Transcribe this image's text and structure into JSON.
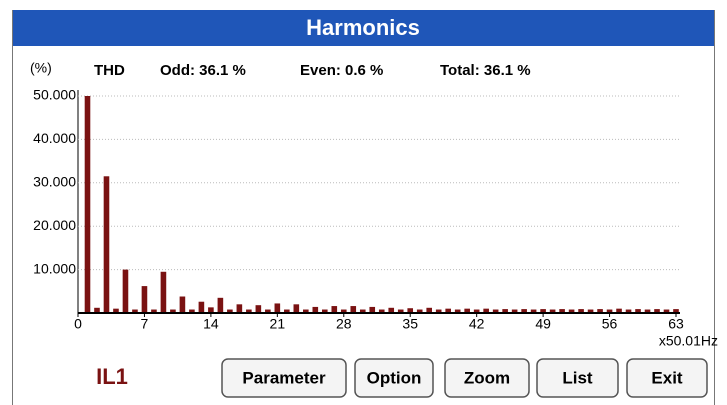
{
  "header": {
    "title": "Harmonics"
  },
  "thd": {
    "unit": "(%)",
    "label": "THD",
    "odd": "Odd: 36.1 %",
    "even": "Even: 0.6 %",
    "total": "Total: 36.1 %"
  },
  "chart_data": {
    "type": "bar",
    "x": [
      1,
      2,
      3,
      4,
      5,
      6,
      7,
      8,
      9,
      10,
      11,
      12,
      13,
      14,
      15,
      16,
      17,
      18,
      19,
      20,
      21,
      22,
      23,
      24,
      25,
      26,
      27,
      28,
      29,
      30,
      31,
      32,
      33,
      34,
      35,
      36,
      37,
      38,
      39,
      40,
      41,
      42,
      43,
      44,
      45,
      46,
      47,
      48,
      49,
      50,
      51,
      52,
      53,
      54,
      55,
      56,
      57,
      58,
      59,
      60,
      61,
      62,
      63
    ],
    "values": [
      50,
      1.2,
      31.5,
      1,
      10,
      0.8,
      6.2,
      0.8,
      9.5,
      0.8,
      3.8,
      0.8,
      2.6,
      1.3,
      3.5,
      0.8,
      2,
      0.8,
      1.8,
      0.8,
      2.2,
      0.8,
      2,
      0.8,
      1.4,
      0.8,
      1.6,
      0.8,
      1.6,
      0.8,
      1.4,
      0.8,
      1.2,
      0.8,
      1.1,
      0.8,
      1.2,
      0.8,
      1,
      0.8,
      1,
      0.8,
      1,
      0.8,
      0.9,
      0.8,
      0.9,
      0.8,
      0.9,
      0.8,
      0.9,
      0.8,
      0.9,
      0.8,
      0.9,
      0.8,
      1,
      0.8,
      0.9,
      0.8,
      0.9,
      0.8,
      0.9
    ],
    "color": "#7a1212",
    "xlim": [
      0,
      63
    ],
    "xticks": [
      0,
      7,
      14,
      21,
      28,
      35,
      42,
      49,
      56,
      63
    ],
    "xlabel": "x50.01Hz",
    "ylim": [
      0,
      50
    ],
    "yticks": [
      {
        "value": 10,
        "label": "10.000"
      },
      {
        "value": 20,
        "label": "20.000"
      },
      {
        "value": 30,
        "label": "30.000"
      },
      {
        "value": 40,
        "label": "40.000"
      },
      {
        "value": 50,
        "label": "50.000"
      }
    ],
    "grid": true
  },
  "channel": "IL1",
  "buttons": [
    "Parameter",
    "Option",
    "Zoom",
    "List",
    "Exit"
  ]
}
